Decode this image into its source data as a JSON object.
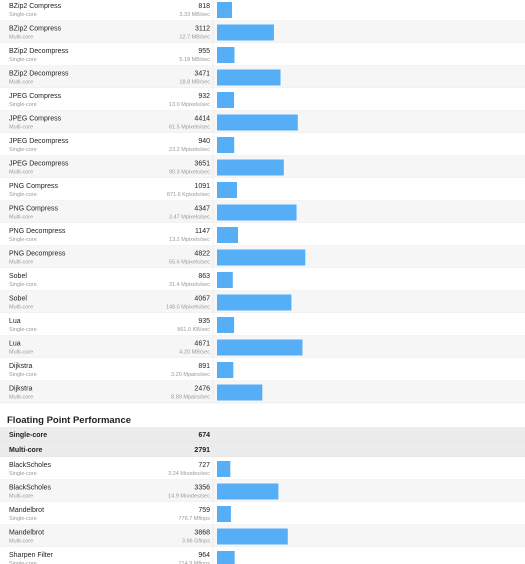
{
  "integer_rows": [
    {
      "name": "BZip2 Compress",
      "mode": "Single-core",
      "score": 818,
      "rate": "3.33 MB/sec"
    },
    {
      "name": "BZip2 Compress",
      "mode": "Multi-core",
      "score": 3112,
      "rate": "12.7 MB/sec"
    },
    {
      "name": "BZip2 Decompress",
      "mode": "Single-core",
      "score": 955,
      "rate": "5.18 MB/sec"
    },
    {
      "name": "BZip2 Decompress",
      "mode": "Multi-core",
      "score": 3471,
      "rate": "18.8 MB/sec"
    },
    {
      "name": "JPEG Compress",
      "mode": "Single-core",
      "score": 932,
      "rate": "13.0 Mpixels/sec"
    },
    {
      "name": "JPEG Compress",
      "mode": "Multi-core",
      "score": 4414,
      "rate": "61.5 Mpixels/sec"
    },
    {
      "name": "JPEG Decompress",
      "mode": "Single-core",
      "score": 940,
      "rate": "23.2 Mpixels/sec"
    },
    {
      "name": "JPEG Decompress",
      "mode": "Multi-core",
      "score": 3651,
      "rate": "90.3 Mpixels/sec"
    },
    {
      "name": "PNG Compress",
      "mode": "Single-core",
      "score": 1091,
      "rate": "871.6 Kpixels/sec"
    },
    {
      "name": "PNG Compress",
      "mode": "Multi-core",
      "score": 4347,
      "rate": "3.47 Mpixels/sec"
    },
    {
      "name": "PNG Decompress",
      "mode": "Single-core",
      "score": 1147,
      "rate": "13.2 Mpixels/sec"
    },
    {
      "name": "PNG Decompress",
      "mode": "Multi-core",
      "score": 4822,
      "rate": "55.6 Mpixels/sec"
    },
    {
      "name": "Sobel",
      "mode": "Single-core",
      "score": 863,
      "rate": "31.4 Mpixels/sec"
    },
    {
      "name": "Sobel",
      "mode": "Multi-core",
      "score": 4067,
      "rate": "148.0 Mpixels/sec"
    },
    {
      "name": "Lua",
      "mode": "Single-core",
      "score": 935,
      "rate": "861.0 KB/sec"
    },
    {
      "name": "Lua",
      "mode": "Multi-core",
      "score": 4671,
      "rate": "4.20 MB/sec"
    },
    {
      "name": "Dijkstra",
      "mode": "Single-core",
      "score": 891,
      "rate": "3.20 Mpairs/sec"
    },
    {
      "name": "Dijkstra",
      "mode": "Multi-core",
      "score": 2476,
      "rate": "8.89 Mpairs/sec"
    }
  ],
  "floating_point": {
    "title": "Floating Point Performance",
    "summary": [
      {
        "label": "Single-core",
        "score": 674
      },
      {
        "label": "Multi-core",
        "score": 2791
      }
    ],
    "rows": [
      {
        "name": "BlackScholes",
        "mode": "Single-core",
        "score": 727,
        "rate": "3.24 Mnodes/sec"
      },
      {
        "name": "BlackScholes",
        "mode": "Multi-core",
        "score": 3356,
        "rate": "14.9 Mnodes/sec"
      },
      {
        "name": "Mandelbrot",
        "mode": "Single-core",
        "score": 759,
        "rate": "776.7 Mflops"
      },
      {
        "name": "Mandelbrot",
        "mode": "Multi-core",
        "score": 3868,
        "rate": "3.96 Gflops"
      },
      {
        "name": "Sharpen Filter",
        "mode": "Single-core",
        "score": 964,
        "rate": "714.9 Mflops"
      }
    ]
  }
}
